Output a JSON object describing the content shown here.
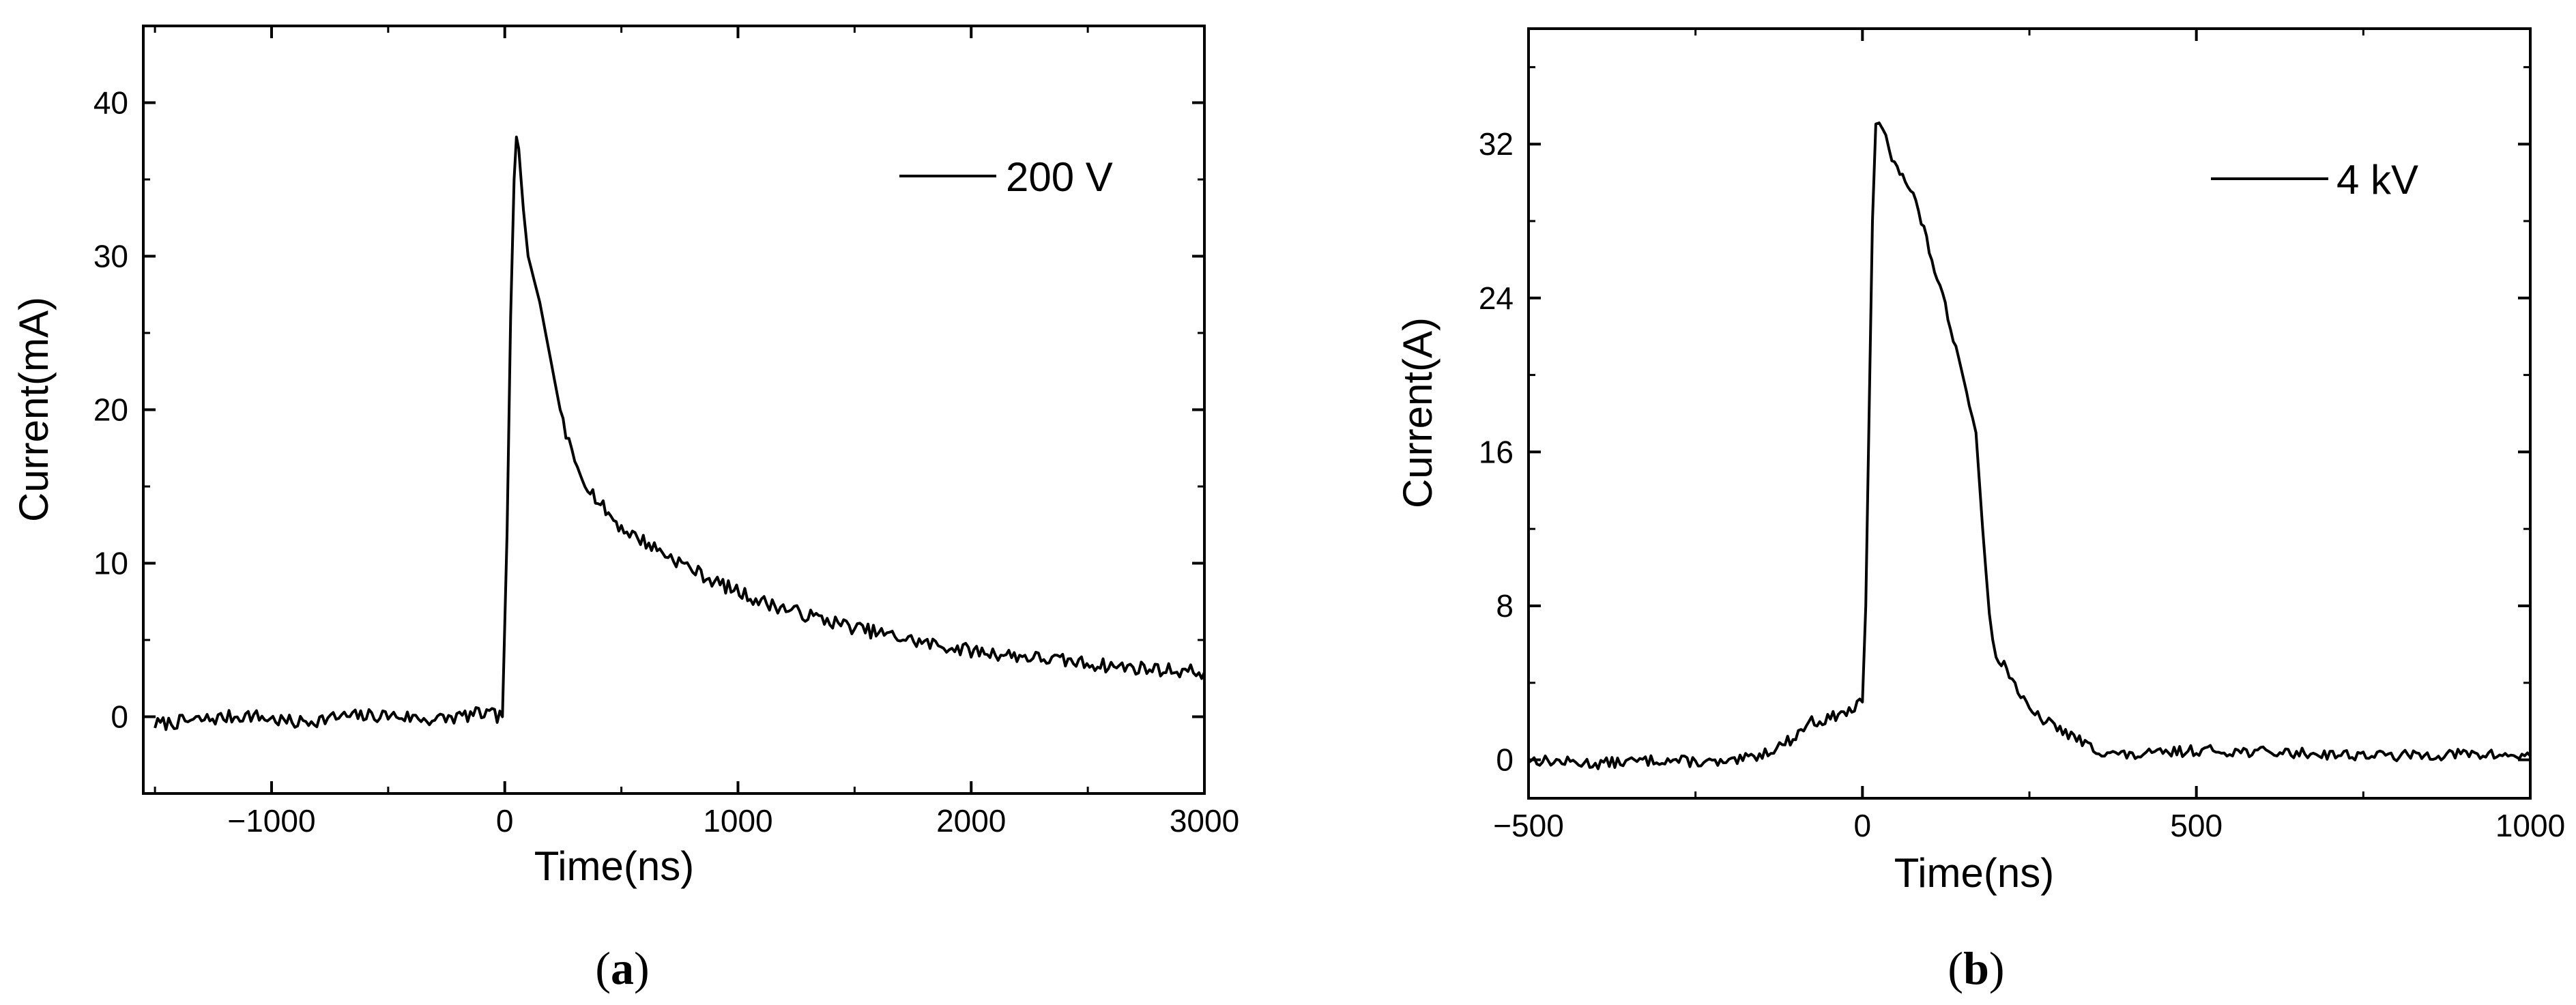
{
  "chart_data": [
    {
      "type": "line",
      "panel_label": "(a)",
      "caption_open": "(",
      "caption_letter": "a",
      "caption_close": ")",
      "xlabel": "Time(ns)",
      "ylabel": "Current(mA)",
      "xlim": [
        -1550,
        3000
      ],
      "ylim": [
        -5,
        45
      ],
      "xticks": [
        -1000,
        0,
        1000,
        2000,
        3000
      ],
      "xtick_labels": [
        "−1000",
        "0",
        "1000",
        "2000",
        "3000"
      ],
      "yticks": [
        0,
        10,
        20,
        30,
        40
      ],
      "ytick_labels": [
        "0",
        "10",
        "20",
        "30",
        "40"
      ],
      "legend": "200 V",
      "legend_position": "top-right",
      "grid": false,
      "series": [
        {
          "name": "200 V",
          "x": [
            -1500,
            -1300,
            -1100,
            -900,
            -700,
            -500,
            -300,
            -100,
            -10,
            10,
            25,
            40,
            50,
            60,
            80,
            100,
            150,
            200,
            250,
            300,
            400,
            500,
            700,
            900,
            1100,
            1300,
            1500,
            1800,
            2000,
            2300,
            2600,
            3000
          ],
          "y": [
            -0.5,
            -0.2,
            0.1,
            -0.4,
            0.0,
            0.1,
            -0.2,
            0.2,
            0.0,
            12,
            26,
            35,
            38,
            37,
            33,
            30,
            27,
            23,
            19,
            16.5,
            14,
            12.3,
            10.5,
            8.8,
            7.5,
            6.6,
            5.8,
            4.8,
            4.3,
            3.8,
            3.3,
            2.9
          ]
        }
      ]
    },
    {
      "type": "line",
      "panel_label": "(b)",
      "caption_open": "(",
      "caption_letter": "b",
      "caption_close": ")",
      "xlabel": "Time(ns)",
      "ylabel": "Current(A)",
      "xlim": [
        -500,
        1000
      ],
      "ylim": [
        -2,
        38
      ],
      "xticks": [
        -500,
        0,
        500,
        1000
      ],
      "xtick_labels": [
        "−500",
        "0",
        "500",
        "1000"
      ],
      "yticks": [
        0,
        8,
        16,
        24,
        32
      ],
      "ytick_labels": [
        "0",
        "8",
        "16",
        "24",
        "32"
      ],
      "legend": "4 kV",
      "legend_position": "top-right",
      "grid": false,
      "series": [
        {
          "name": "4 kV",
          "x": [
            -500,
            -400,
            -300,
            -200,
            -150,
            -120,
            -100,
            -80,
            -60,
            -40,
            -20,
            0,
            5,
            10,
            15,
            20,
            30,
            40,
            60,
            80,
            100,
            120,
            140,
            160,
            170,
            180,
            190,
            200,
            220,
            250,
            300,
            350,
            400,
            500,
            600,
            700,
            800,
            900,
            1000
          ],
          "y": [
            0.0,
            -0.2,
            0.0,
            -0.2,
            0.3,
            0.8,
            1.2,
            2.0,
            2.0,
            2.3,
            2.5,
            3.0,
            8,
            18,
            28,
            33,
            33,
            31.5,
            30.5,
            29,
            26.5,
            24,
            21.5,
            18.5,
            17,
            12,
            7.5,
            5.5,
            4.5,
            2.5,
            1.5,
            0.5,
            0.2,
            0.5,
            0.4,
            0.3,
            0.2,
            0.3,
            0.2
          ]
        }
      ]
    }
  ]
}
